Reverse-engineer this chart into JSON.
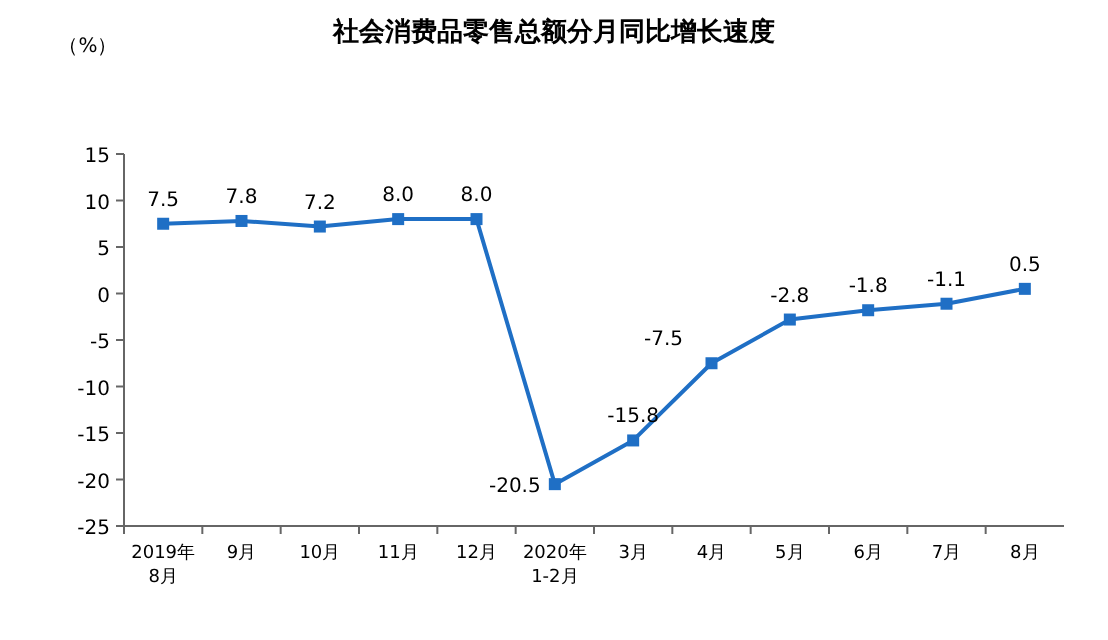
{
  "chart_data": {
    "type": "line",
    "title": "社会消费品零售总额分月同比增长速度",
    "ylabel": "（%）",
    "categories": [
      "2019年\n8月",
      "9月",
      "10月",
      "11月",
      "12月",
      "2020年\n1-2月",
      "3月",
      "4月",
      "5月",
      "6月",
      "7月",
      "8月"
    ],
    "series": [
      {
        "color": "#1f6fc5",
        "values": [
          7.5,
          7.8,
          7.2,
          8.0,
          8.0,
          -20.5,
          -15.8,
          -7.5,
          -2.8,
          -1.8,
          -1.1,
          0.5
        ],
        "value_labels": [
          "7.5",
          "7.8",
          "7.2",
          "8.0",
          "8.0",
          "-20.5",
          "-15.8",
          "-7.5",
          "-2.8",
          "-1.8",
          "-1.1",
          "0.5"
        ]
      }
    ],
    "ylim": [
      -25,
      15
    ],
    "yticks": [
      -25,
      -20,
      -15,
      -10,
      -5,
      0,
      5,
      10,
      15
    ],
    "marker": "square",
    "line_style": "solid",
    "grid": false
  }
}
